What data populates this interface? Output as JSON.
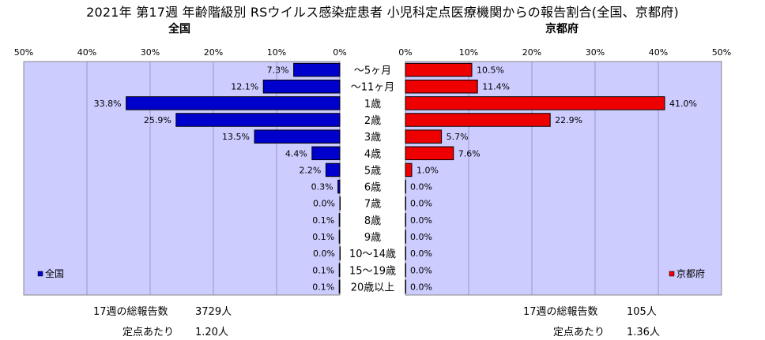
{
  "title": "2021年 第17週 年齢階級別 RSウイルス感染症患者 小児科定点医療機関からの報告割合(全国、京都府)",
  "chart_data": [
    {
      "type": "bar",
      "orientation": "horizontal",
      "direction": "right-to-left",
      "title": "全国",
      "categories": [
        "～5ヶ月",
        "～11ヶ月",
        "1歳",
        "2歳",
        "3歳",
        "4歳",
        "5歳",
        "6歳",
        "7歳",
        "8歳",
        "9歳",
        "10～14歳",
        "15～19歳",
        "20歳以上"
      ],
      "series": [
        {
          "name": "全国",
          "color": "#0000cc",
          "values": [
            7.3,
            12.1,
            33.8,
            25.9,
            13.5,
            4.4,
            2.2,
            0.3,
            0.0,
            0.1,
            0.1,
            0.0,
            0.1,
            0.1
          ],
          "labels": [
            "7.3%",
            "12.1%",
            "33.8%",
            "25.9%",
            "13.5%",
            "4.4%",
            "2.2%",
            "0.3%",
            "0.0%",
            "0.1%",
            "0.1%",
            "0.0%",
            "0.1%",
            "0.1%"
          ]
        }
      ],
      "xlim": [
        0,
        50
      ],
      "ticks": [
        "50%",
        "40%",
        "30%",
        "20%",
        "10%",
        "0%"
      ],
      "legend": "bottom-left",
      "grid": true
    },
    {
      "type": "bar",
      "orientation": "horizontal",
      "direction": "left-to-right",
      "title": "京都府",
      "categories": [
        "～5ヶ月",
        "～11ヶ月",
        "1歳",
        "2歳",
        "3歳",
        "4歳",
        "5歳",
        "6歳",
        "7歳",
        "8歳",
        "9歳",
        "10～14歳",
        "15～19歳",
        "20歳以上"
      ],
      "series": [
        {
          "name": "京都府",
          "color": "#ee0000",
          "values": [
            10.5,
            11.4,
            41.0,
            22.9,
            5.7,
            7.6,
            1.0,
            0.0,
            0.0,
            0.0,
            0.0,
            0.0,
            0.0,
            0.0
          ],
          "labels": [
            "10.5%",
            "11.4%",
            "41.0%",
            "22.9%",
            "5.7%",
            "7.6%",
            "1.0%",
            "0.0%",
            "0.0%",
            "0.0%",
            "0.0%",
            "0.0%",
            "0.0%",
            "0.0%"
          ]
        }
      ],
      "xlim": [
        0,
        50
      ],
      "ticks": [
        "0%",
        "10%",
        "20%",
        "30%",
        "40%",
        "50%"
      ],
      "legend": "bottom-right",
      "grid": true
    }
  ],
  "stats": {
    "national": {
      "total_label": "17週の総報告数",
      "total_value": "3729人",
      "per_label": "定点あたり",
      "per_value": "1.20人"
    },
    "kyoto": {
      "total_label": "17週の総報告数",
      "total_value": "105人",
      "per_label": "定点あたり",
      "per_value": "1.36人"
    }
  },
  "colors": {
    "plot_bg": "#ccccff",
    "grid": "#9999cc"
  }
}
